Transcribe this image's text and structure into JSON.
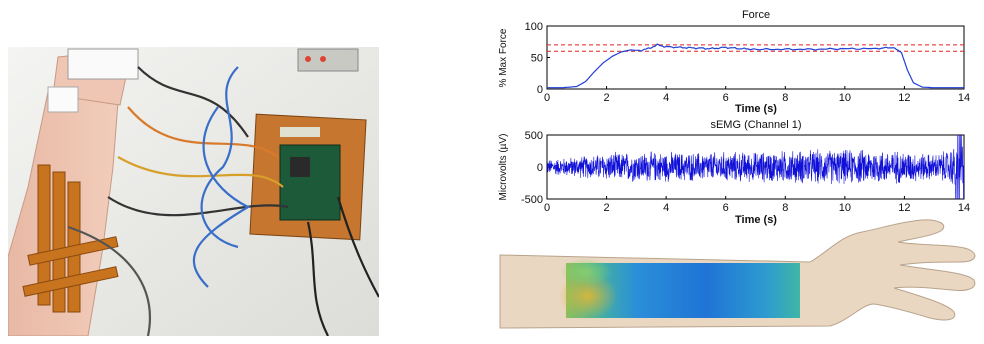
{
  "figure": {
    "force_chart": {
      "title": "Force",
      "xlabel": "Time (s)",
      "ylabel": "% Max Force",
      "x_ticks": [
        "0",
        "2",
        "4",
        "6",
        "8",
        "10",
        "12",
        "14"
      ],
      "y_ticks": [
        "0",
        "50",
        "100"
      ]
    },
    "emg_chart": {
      "title": "sEMG (Channel 1)",
      "xlabel": "Time (s)",
      "ylabel": "Microvolts (µV)",
      "x_ticks": [
        "0",
        "2",
        "4",
        "6",
        "8",
        "10",
        "12",
        "14"
      ],
      "y_ticks": [
        "-500",
        "0",
        "500"
      ]
    }
  },
  "chart_data": [
    {
      "type": "line",
      "title": "Force",
      "xlabel": "Time (s)",
      "ylabel": "% Max Force",
      "xlim": [
        0,
        14
      ],
      "ylim": [
        0,
        100
      ],
      "grid": false,
      "series": [
        {
          "color": "#1f3fd6",
          "x": [
            0,
            0.5,
            1.0,
            1.3,
            1.6,
            1.9,
            2.2,
            2.5,
            2.8,
            3.1,
            3.4,
            3.7,
            4.0,
            4.5,
            5.0,
            5.5,
            6.0,
            6.5,
            7.0,
            8.0,
            9.0,
            10.0,
            11.0,
            11.6,
            11.9,
            12.1,
            12.3,
            12.6,
            13.0,
            13.5,
            14.0
          ],
          "y": [
            2,
            2,
            4,
            12,
            28,
            42,
            52,
            59,
            62,
            61,
            64,
            70,
            67,
            66,
            65,
            64,
            66,
            64,
            63,
            63,
            63,
            64,
            64,
            66,
            58,
            30,
            10,
            3,
            2,
            2,
            2
          ]
        }
      ],
      "reference_lines": [
        {
          "y": 70,
          "color": "#e02020",
          "style": "dashed"
        },
        {
          "y": 60,
          "color": "#e02020",
          "style": "dashed"
        }
      ]
    },
    {
      "type": "line",
      "title": "sEMG (Channel 1)",
      "xlabel": "Time (s)",
      "ylabel": "Microvolts (µV)",
      "xlim": [
        0,
        14
      ],
      "ylim": [
        -500,
        500
      ],
      "grid": false,
      "series": [
        {
          "color": "#1010d8",
          "x": [
            0,
            1,
            2,
            3,
            4,
            5,
            6,
            7,
            8,
            9,
            10,
            11,
            12,
            13,
            13.5,
            14
          ],
          "y_envelope_amplitude": [
            130,
            180,
            240,
            260,
            260,
            250,
            260,
            260,
            280,
            300,
            300,
            300,
            280,
            220,
            300,
            500
          ]
        }
      ]
    }
  ],
  "colors": {
    "force_line": "#1f3fd6",
    "threshold_line": "#e02020",
    "emg_signal": "#1010d8",
    "skin": "#ead7c2",
    "heatmap_high": "#d9b53a",
    "heatmap_mid": "#3fb6a5",
    "heatmap_low": "#1f74d6"
  },
  "icons": [
    "experimental-setup-photo",
    "forearm-illustration",
    "electrode-heatmap"
  ]
}
